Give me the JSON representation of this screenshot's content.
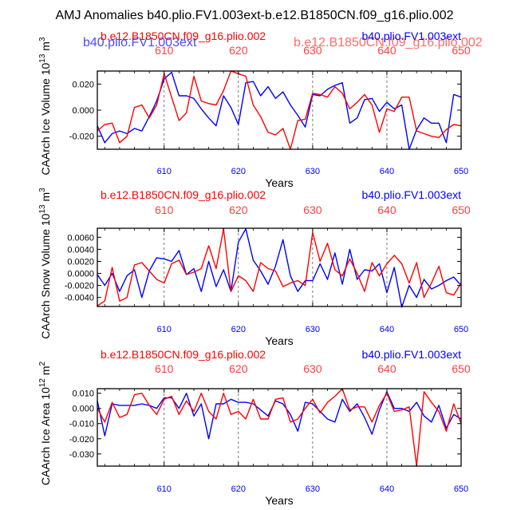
{
  "page_title": "AMJ Anomalies b40.plio.FV1.003ext-b.e12.B1850CN.f09_g16.plio.002",
  "overlay": {
    "blue_text": "b40.plio.FV1.003ext",
    "red_text": "b.e12.B1850CN.f09_g16.plio.002"
  },
  "colors": {
    "series_a": "#0000ff",
    "series_b": "#ff0000",
    "frame": "#000000"
  },
  "chart_data": [
    {
      "type": "line",
      "ylabel": "CAArch Ice Volume 10",
      "ylabel_exp": "13",
      "ylabel_unit": " m",
      "ylabel_unit_exp": "3",
      "xlabel": "Years",
      "xlim": [
        601,
        650
      ],
      "ylim": [
        -0.03,
        0.03
      ],
      "yticks": [
        -0.02,
        0.0,
        0.02
      ],
      "ytick_labels": [
        "-0.020",
        "0.000",
        "0.020"
      ],
      "xticks": [
        610,
        620,
        630,
        640,
        650
      ],
      "xtick_labels": [
        "610",
        "620",
        "630",
        "640",
        "650"
      ],
      "top_legend": {
        "left": "b.e12.B1850CN.f09_g16.plio.002",
        "right": "b40.plio.FV1.003ext"
      },
      "x": [
        601,
        602,
        603,
        604,
        605,
        606,
        607,
        608,
        609,
        610,
        611,
        612,
        613,
        614,
        615,
        616,
        617,
        618,
        619,
        620,
        621,
        622,
        623,
        624,
        625,
        626,
        627,
        628,
        629,
        630,
        631,
        632,
        633,
        634,
        635,
        636,
        637,
        638,
        639,
        640,
        641,
        642,
        643,
        644,
        645,
        646,
        647,
        648,
        649,
        650
      ],
      "series": [
        {
          "name": "b40.plio.FV1.003ext",
          "color": "#0000ff",
          "values": [
            -0.012,
            -0.025,
            -0.018,
            -0.016,
            -0.018,
            -0.014,
            -0.016,
            -0.005,
            0.007,
            0.024,
            0.029,
            0.011,
            0.011,
            0.009,
            0.001,
            -0.006,
            -0.012,
            0.011,
            0.002,
            -0.011,
            0.021,
            0.022,
            0.011,
            0.018,
            0.009,
            0.014,
            0.004,
            -0.004,
            -0.013,
            0.012,
            0.011,
            0.016,
            0.019,
            0.021,
            -0.01,
            -0.006,
            0.008,
            0.009,
            -0.001,
            0.006,
            0.001,
            0.004,
            -0.03,
            -0.015,
            -0.006,
            -0.01,
            -0.01,
            -0.025,
            0.012,
            0.01
          ]
        },
        {
          "name": "b.e12.B1850CN.f09_g16.plio.002",
          "color": "#ff0000",
          "values": [
            -0.016,
            -0.011,
            -0.01,
            -0.025,
            -0.02,
            0.002,
            0.004,
            -0.006,
            0.004,
            0.028,
            0.01,
            -0.008,
            -0.002,
            0.026,
            0.007,
            0.005,
            0.004,
            0.015,
            0.03,
            0.028,
            0.026,
            0.004,
            -0.005,
            -0.017,
            -0.019,
            -0.014,
            -0.03,
            -0.008,
            -0.007,
            0.013,
            0.012,
            0.01,
            0.018,
            0.013,
            0.001,
            0.006,
            0.012,
            0.004,
            -0.017,
            0.001,
            -0.001,
            0.01,
            0.01,
            -0.016,
            -0.018,
            -0.02,
            -0.021,
            -0.015,
            -0.011,
            -0.012
          ]
        }
      ]
    },
    {
      "type": "line",
      "ylabel": "CAArch Snow Volume 10",
      "ylabel_exp": "13",
      "ylabel_unit": " m",
      "ylabel_unit_exp": "3",
      "xlabel": "Years",
      "xlim": [
        601,
        650
      ],
      "ylim": [
        -0.0055,
        0.0075
      ],
      "yticks": [
        -0.004,
        -0.002,
        0.0,
        0.002,
        0.004,
        0.006
      ],
      "ytick_labels": [
        "-0.0040",
        "-0.0020",
        "0.0000",
        "0.0020",
        "0.0040",
        "0.0060"
      ],
      "xticks": [
        610,
        620,
        630,
        640,
        650
      ],
      "xtick_labels": [
        "610",
        "620",
        "630",
        "640",
        "650"
      ],
      "top_legend": {
        "left": "b.e12.B1850CN.f09_g16.plio.002",
        "right": "b40.plio.FV1.003ext"
      },
      "x": [
        601,
        602,
        603,
        604,
        605,
        606,
        607,
        608,
        609,
        610,
        611,
        612,
        613,
        614,
        615,
        616,
        617,
        618,
        619,
        620,
        621,
        622,
        623,
        624,
        625,
        626,
        627,
        628,
        629,
        630,
        631,
        632,
        633,
        634,
        635,
        636,
        637,
        638,
        639,
        640,
        641,
        642,
        643,
        644,
        645,
        646,
        647,
        648,
        649,
        650
      ],
      "series": [
        {
          "name": "b40.plio.FV1.003ext",
          "color": "#0000ff",
          "values": [
            -0.0002,
            -0.002,
            0.0,
            -0.003,
            -0.0004,
            0.0006,
            -0.004,
            0.0004,
            0.0026,
            0.0024,
            0.002,
            0.0038,
            -0.0002,
            0.0008,
            -0.003,
            0.002,
            -0.0022,
            0.0006,
            -0.003,
            0.0052,
            0.0074,
            0.0022,
            0.0004,
            -0.0018,
            0.0012,
            0.0056,
            -0.0004,
            -0.003,
            -0.0012,
            -0.0012,
            0.0016,
            -0.001,
            0.0034,
            -0.0018,
            0.004,
            -0.001,
            0.0006,
            0.0004,
            0.0016,
            -0.0032,
            0.001,
            -0.0056,
            -0.002,
            -0.004,
            -0.001,
            -0.0026,
            -0.002,
            -0.0012,
            -0.0006,
            -0.002
          ]
        },
        {
          "name": "b.e12.B1850CN.f09_g16.plio.002",
          "color": "#ff0000",
          "values": [
            -0.0054,
            -0.0046,
            0.001,
            -0.0046,
            -0.004,
            0.0014,
            0.0018,
            0.0004,
            -0.001,
            -0.0016,
            0.0016,
            0.0022,
            -0.0002,
            0.0002,
            0.0008,
            0.0046,
            0.0008,
            0.0074,
            -0.003,
            -0.0004,
            -0.0012,
            -0.003,
            0.0018,
            0.0008,
            0.0004,
            -0.0022,
            -0.0016,
            -0.0012,
            -0.002,
            0.0068,
            0.002,
            0.005,
            0.0006,
            -0.0004,
            0.0024,
            0.0,
            -0.003,
            0.0018,
            -0.0004,
            0.0016,
            0.003,
            0.0016,
            -0.0016,
            0.0018,
            -0.004,
            -0.0016,
            0.0012,
            -0.0032,
            -0.0036,
            -0.0016
          ]
        }
      ]
    },
    {
      "type": "line",
      "ylabel": "CAArch Ice Area 10",
      "ylabel_exp": "12",
      "ylabel_unit": " m",
      "ylabel_unit_exp": "2",
      "xlabel": "Years",
      "xlim": [
        601,
        650
      ],
      "ylim": [
        -0.038,
        0.013
      ],
      "yticks": [
        -0.03,
        -0.02,
        -0.01,
        0.0,
        0.01
      ],
      "ytick_labels": [
        "-0.030",
        "-0.020",
        "-0.010",
        "0.000",
        "0.010"
      ],
      "xticks": [
        610,
        620,
        630,
        640,
        650
      ],
      "xtick_labels": [
        "610",
        "620",
        "630",
        "640",
        "650"
      ],
      "top_legend": {
        "left": "b.e12.B1850CN.f09_g16.plio.002",
        "right": "b40.plio.FV1.003ext"
      },
      "x": [
        601,
        602,
        603,
        604,
        605,
        606,
        607,
        608,
        609,
        610,
        611,
        612,
        613,
        614,
        615,
        616,
        617,
        618,
        619,
        620,
        621,
        622,
        623,
        624,
        625,
        626,
        627,
        628,
        629,
        630,
        631,
        632,
        633,
        634,
        635,
        636,
        637,
        638,
        639,
        640,
        641,
        642,
        643,
        644,
        645,
        646,
        647,
        648,
        649,
        650
      ],
      "series": [
        {
          "name": "b40.plio.FV1.003ext",
          "color": "#0000ff",
          "values": [
            0.005,
            -0.018,
            0.003,
            0.002,
            0.002,
            0.002,
            0.003,
            0.002,
            0.0,
            0.007,
            0.007,
            0.0,
            0.01,
            -0.005,
            0.003,
            -0.02,
            0.003,
            0.003,
            0.006,
            0.004,
            0.004,
            0.003,
            -0.001,
            -0.005,
            0.005,
            0.003,
            -0.004,
            -0.015,
            0.004,
            0.003,
            -0.002,
            -0.007,
            -0.009,
            0.006,
            -0.002,
            0.003,
            -0.006,
            -0.017,
            -0.001,
            0.011,
            0.0,
            0.0,
            -0.002,
            0.004,
            -0.005,
            -0.009,
            0.002,
            -0.013,
            -0.004,
            -0.007
          ]
        },
        {
          "name": "b.e12.B1850CN.f09_g16.plio.002",
          "color": "#ff0000",
          "values": [
            0.0,
            -0.009,
            0.004,
            -0.006,
            -0.004,
            0.009,
            0.01,
            0.002,
            -0.004,
            0.006,
            0.008,
            -0.004,
            0.005,
            -0.002,
            0.01,
            -0.002,
            -0.007,
            0.01,
            -0.004,
            -0.002,
            -0.007,
            0.006,
            -0.007,
            -0.007,
            0.006,
            0.007,
            -0.009,
            -0.007,
            0.0,
            0.006,
            -0.003,
            0.004,
            0.008,
            0.013,
            -0.001,
            0.001,
            0.001,
            -0.009,
            0.002,
            0.01,
            -0.002,
            -0.001,
            0.001,
            -0.038,
            0.011,
            0.004,
            -0.002,
            -0.015,
            0.003,
            -0.01
          ]
        }
      ]
    }
  ]
}
